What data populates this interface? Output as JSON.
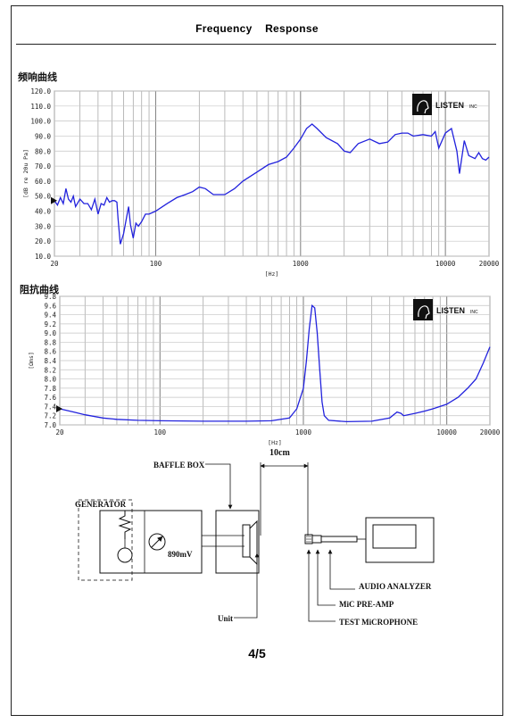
{
  "document": {
    "title": "Frequency    Response",
    "page_number": "4/5"
  },
  "sections": {
    "frequency_label": "频响曲线",
    "impedance_label": "阻抗曲线"
  },
  "logo": {
    "text": "LISTEN",
    "suffix": "INC"
  },
  "chart_data": [
    {
      "type": "line",
      "ylabel": "[dB re 20u Pa]",
      "xlabel": "[Hz]",
      "xscale": "log",
      "xlim": [
        20,
        20000
      ],
      "ylim": [
        10,
        120
      ],
      "grid": true,
      "x_ticks": [
        "20",
        "100",
        "1000",
        "10000",
        "20000"
      ],
      "y_ticks": [
        "120.0",
        "110.0",
        "100.0",
        "90.0",
        "80.0",
        "70.0",
        "60.0",
        "50.0",
        "40.0",
        "30.0",
        "20.0",
        "10.0"
      ],
      "color": "#2222dd",
      "points": [
        [
          20,
          47
        ],
        [
          21,
          44
        ],
        [
          22,
          49
        ],
        [
          23,
          45
        ],
        [
          24,
          55
        ],
        [
          25,
          48
        ],
        [
          26,
          46
        ],
        [
          27,
          50
        ],
        [
          28,
          43
        ],
        [
          30,
          48
        ],
        [
          32,
          45
        ],
        [
          34,
          45
        ],
        [
          36,
          41
        ],
        [
          38,
          48
        ],
        [
          40,
          38
        ],
        [
          42,
          45
        ],
        [
          44,
          44
        ],
        [
          46,
          49
        ],
        [
          48,
          46
        ],
        [
          50,
          47
        ],
        [
          52,
          47
        ],
        [
          54,
          46
        ],
        [
          55,
          35
        ],
        [
          57,
          18
        ],
        [
          60,
          25
        ],
        [
          63,
          36
        ],
        [
          65,
          43
        ],
        [
          67,
          31
        ],
        [
          70,
          22
        ],
        [
          73,
          32
        ],
        [
          76,
          30
        ],
        [
          80,
          33
        ],
        [
          85,
          38
        ],
        [
          90,
          38
        ],
        [
          100,
          40
        ],
        [
          120,
          45
        ],
        [
          140,
          49
        ],
        [
          160,
          51
        ],
        [
          180,
          53
        ],
        [
          200,
          56
        ],
        [
          220,
          55
        ],
        [
          250,
          51
        ],
        [
          300,
          51
        ],
        [
          350,
          55
        ],
        [
          400,
          60
        ],
        [
          500,
          66
        ],
        [
          600,
          71
        ],
        [
          700,
          73
        ],
        [
          800,
          76
        ],
        [
          900,
          82
        ],
        [
          1000,
          88
        ],
        [
          1100,
          95
        ],
        [
          1200,
          98
        ],
        [
          1300,
          95
        ],
        [
          1500,
          89
        ],
        [
          1800,
          85
        ],
        [
          2000,
          80
        ],
        [
          2200,
          79
        ],
        [
          2500,
          85
        ],
        [
          3000,
          88
        ],
        [
          3500,
          85
        ],
        [
          4000,
          86
        ],
        [
          4500,
          91
        ],
        [
          5000,
          92
        ],
        [
          5500,
          92
        ],
        [
          6000,
          90
        ],
        [
          7000,
          91
        ],
        [
          8000,
          90
        ],
        [
          8500,
          93
        ],
        [
          9000,
          82
        ],
        [
          10000,
          92
        ],
        [
          11000,
          95
        ],
        [
          12000,
          80
        ],
        [
          12500,
          65
        ],
        [
          13500,
          87
        ],
        [
          14500,
          77
        ],
        [
          16000,
          75
        ],
        [
          17000,
          79
        ],
        [
          18000,
          75
        ],
        [
          19000,
          74
        ],
        [
          20000,
          76
        ]
      ]
    },
    {
      "type": "line",
      "ylabel": "[Ωms]",
      "xlabel": "[Hz]",
      "xscale": "log",
      "xlim": [
        20,
        20000
      ],
      "ylim": [
        7.0,
        9.8
      ],
      "grid": true,
      "x_ticks": [
        "20",
        "100",
        "1000",
        "10000",
        "20000"
      ],
      "y_ticks": [
        "9.8",
        "9.6",
        "9.4",
        "9.2",
        "9.0",
        "8.8",
        "8.6",
        "8.4",
        "8.2",
        "8.0",
        "7.8",
        "7.6",
        "7.4",
        "7.2",
        "7.0"
      ],
      "color": "#2222dd",
      "points": [
        [
          20,
          7.35
        ],
        [
          25,
          7.28
        ],
        [
          30,
          7.22
        ],
        [
          40,
          7.15
        ],
        [
          50,
          7.12
        ],
        [
          70,
          7.1
        ],
        [
          100,
          7.09
        ],
        [
          200,
          7.08
        ],
        [
          400,
          7.08
        ],
        [
          600,
          7.09
        ],
        [
          800,
          7.15
        ],
        [
          900,
          7.35
        ],
        [
          1000,
          7.8
        ],
        [
          1050,
          8.4
        ],
        [
          1100,
          9.1
        ],
        [
          1150,
          9.6
        ],
        [
          1200,
          9.55
        ],
        [
          1250,
          9.0
        ],
        [
          1300,
          8.2
        ],
        [
          1350,
          7.5
        ],
        [
          1400,
          7.2
        ],
        [
          1500,
          7.1
        ],
        [
          2000,
          7.07
        ],
        [
          3000,
          7.08
        ],
        [
          4000,
          7.15
        ],
        [
          4500,
          7.28
        ],
        [
          4800,
          7.25
        ],
        [
          5000,
          7.2
        ],
        [
          6000,
          7.25
        ],
        [
          7000,
          7.3
        ],
        [
          8000,
          7.35
        ],
        [
          10000,
          7.45
        ],
        [
          12000,
          7.6
        ],
        [
          14000,
          7.8
        ],
        [
          16000,
          8.0
        ],
        [
          18000,
          8.35
        ],
        [
          20000,
          8.7
        ]
      ]
    }
  ],
  "diagram": {
    "baffle_box": "BAFFLE BOX",
    "distance": "10cm",
    "generator": "GENERATOR",
    "voltage": "890mV",
    "audio_analyzer": "AUDIO ANALYZER",
    "mic_preamp": "MiC PRE-AMP",
    "test_microphone": "TEST MiCROPHONE",
    "unit": "Unit"
  }
}
